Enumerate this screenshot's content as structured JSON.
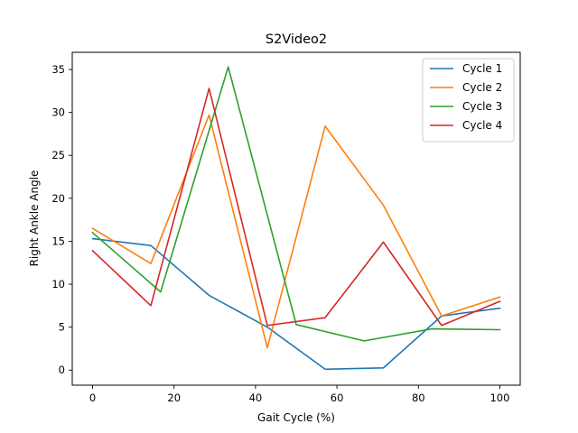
{
  "chart_data": {
    "type": "line",
    "title": "S2Video2",
    "xlabel": "Gait Cycle (%)",
    "ylabel": "Right Ankle Angle",
    "xlim": [
      -5,
      105
    ],
    "ylim": [
      -1.76,
      37.0
    ],
    "xticks": [
      0,
      20,
      40,
      60,
      80,
      100
    ],
    "yticks": [
      0,
      5,
      10,
      15,
      20,
      25,
      30,
      35
    ],
    "grid": false,
    "legend_position": "top-right",
    "series": [
      {
        "name": "Cycle 1",
        "color": "#1f77b4",
        "x": [
          0,
          14.3,
          28.6,
          42.9,
          57.1,
          71.4,
          85.7,
          100
        ],
        "y": [
          15.3,
          14.5,
          8.7,
          5.0,
          0.1,
          0.25,
          6.3,
          7.2
        ]
      },
      {
        "name": "Cycle 2",
        "color": "#ff7f0e",
        "x": [
          0,
          14.3,
          28.6,
          42.9,
          57.1,
          71.4,
          85.7,
          100
        ],
        "y": [
          16.5,
          12.4,
          29.7,
          2.6,
          28.4,
          19.2,
          6.3,
          8.5
        ]
      },
      {
        "name": "Cycle 3",
        "color": "#2ca02c",
        "x": [
          0,
          16.7,
          33.3,
          50,
          66.7,
          83.3,
          100
        ],
        "y": [
          16.0,
          9.1,
          35.3,
          5.3,
          3.4,
          4.8,
          4.7
        ]
      },
      {
        "name": "Cycle 4",
        "color": "#d62728",
        "x": [
          0,
          14.3,
          28.6,
          42.9,
          57.1,
          71.4,
          85.7,
          100
        ],
        "y": [
          13.9,
          7.5,
          32.8,
          5.2,
          6.1,
          14.9,
          5.2,
          8.0
        ]
      }
    ]
  }
}
